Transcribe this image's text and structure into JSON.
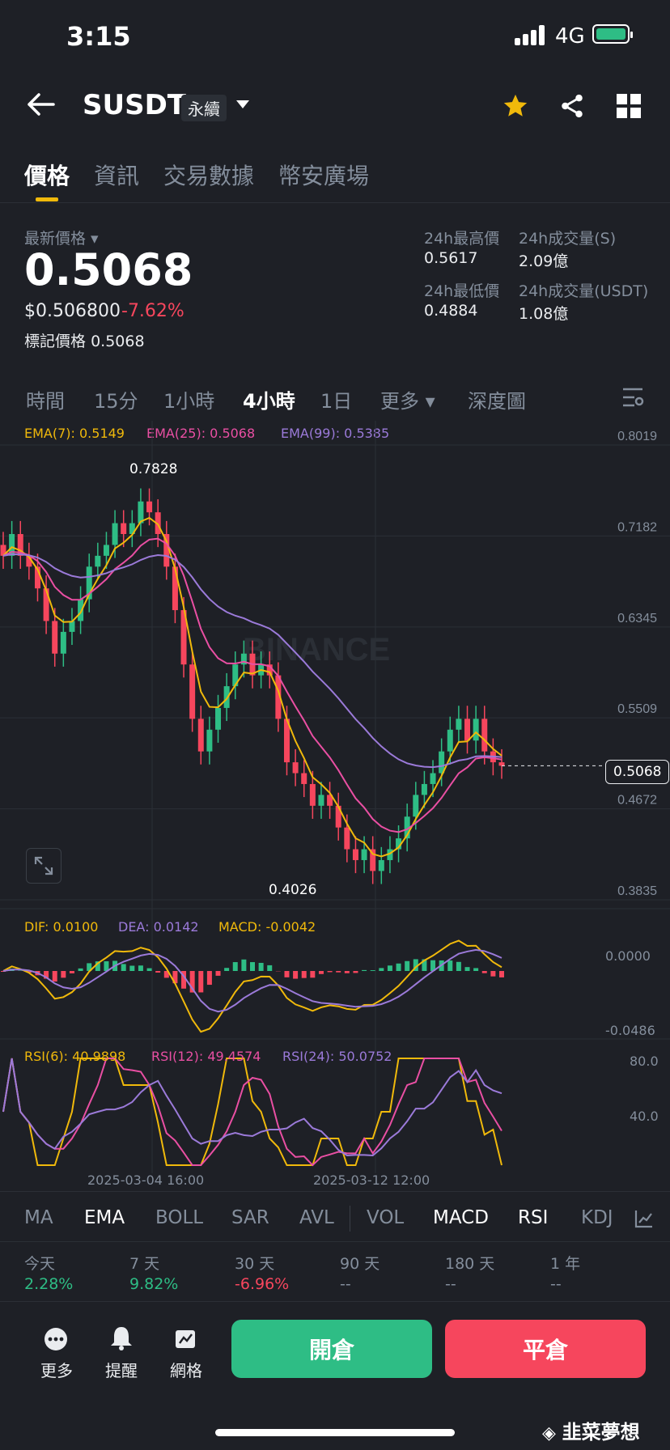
{
  "status_bar": {
    "time": "3:15",
    "network": "4G"
  },
  "header": {
    "symbol": "SUSDT",
    "contract_type": "永續"
  },
  "tabs": [
    {
      "label": "價格",
      "active": true
    },
    {
      "label": "資訊"
    },
    {
      "label": "交易數據"
    },
    {
      "label": "幣安廣場"
    }
  ],
  "price": {
    "label": "最新價格",
    "last": "0.5068",
    "usd": "$0.506800",
    "change": "-7.62%",
    "mark_label": "標記價格",
    "mark": "0.5068"
  },
  "stats": {
    "high_label": "24h最高價",
    "high": "0.5617",
    "vol_s_label": "24h成交量(S)",
    "vol_s": "2.09億",
    "low_label": "24h最低價",
    "low": "0.4884",
    "vol_u_label": "24h成交量(USDT)",
    "vol_u": "1.08億"
  },
  "intervals": [
    "時間",
    "15分",
    "1小時",
    "4小時",
    "1日",
    "更多",
    "深度圖"
  ],
  "active_interval": "4小時",
  "ema": {
    "ema7": "EMA(7): 0.5149",
    "ema25": "EMA(25): 0.5068",
    "ema99": "EMA(99): 0.5385"
  },
  "macd": {
    "dif": "DIF: 0.0100",
    "dea": "DEA: 0.0142",
    "macd": "MACD: -0.0042"
  },
  "rsi": {
    "rsi6": "RSI(6): 40.9898",
    "rsi12": "RSI(12): 49.4574",
    "rsi24": "RSI(24): 50.0752"
  },
  "watermark": "BINANCE",
  "chart_data": {
    "type": "candlestick",
    "price_axis": [
      "0.8019",
      "0.7182",
      "0.6345",
      "0.5509",
      "0.4672",
      "0.3835"
    ],
    "price_range": [
      0.3835,
      0.8019
    ],
    "max_label": "0.7828",
    "min_label": "0.4026",
    "current_price": "0.5068",
    "macd_axis": [
      "0.0000",
      "-0.0486"
    ],
    "rsi_axis": [
      "80.0",
      "40.0"
    ],
    "time_axis": [
      "2025-03-04 16:00",
      "2025-03-12 12:00"
    ],
    "close_series": [
      0.7,
      0.72,
      0.7,
      0.69,
      0.67,
      0.64,
      0.61,
      0.63,
      0.64,
      0.66,
      0.69,
      0.7,
      0.71,
      0.73,
      0.72,
      0.73,
      0.75,
      0.74,
      0.72,
      0.69,
      0.65,
      0.6,
      0.55,
      0.52,
      0.54,
      0.56,
      0.58,
      0.6,
      0.61,
      0.59,
      0.6,
      0.59,
      0.55,
      0.51,
      0.5,
      0.49,
      0.47,
      0.48,
      0.47,
      0.45,
      0.43,
      0.42,
      0.43,
      0.41,
      0.42,
      0.43,
      0.44,
      0.46,
      0.48,
      0.49,
      0.5,
      0.52,
      0.54,
      0.55,
      0.53,
      0.55,
      0.52,
      0.51,
      0.5068
    ]
  },
  "indicator_tabs": [
    "MA",
    "EMA",
    "BOLL",
    "SAR",
    "AVL",
    "VOL",
    "MACD",
    "RSI",
    "KDJ"
  ],
  "performance": [
    {
      "label": "今天",
      "value": "2.28%",
      "color": "#2ebd85"
    },
    {
      "label": "7 天",
      "value": "9.82%",
      "color": "#2ebd85"
    },
    {
      "label": "30 天",
      "value": "-6.96%",
      "color": "#f6465d"
    },
    {
      "label": "90 天",
      "value": "--",
      "color": "#848e9c"
    },
    {
      "label": "180 天",
      "value": "--",
      "color": "#848e9c"
    },
    {
      "label": "1 年",
      "value": "--",
      "color": "#848e9c"
    }
  ],
  "bottom": {
    "more": "更多",
    "alert": "提醒",
    "grid": "網格",
    "open": "開倉",
    "close": "平倉"
  },
  "footer_watermark": "韭菜夢想",
  "colors": {
    "up": "#2ebd85",
    "down": "#f6465d",
    "ema7": "#f0b90b",
    "ema25": "#e94fa3",
    "ema99": "#9b7ad9",
    "accent": "#f0b90b"
  }
}
